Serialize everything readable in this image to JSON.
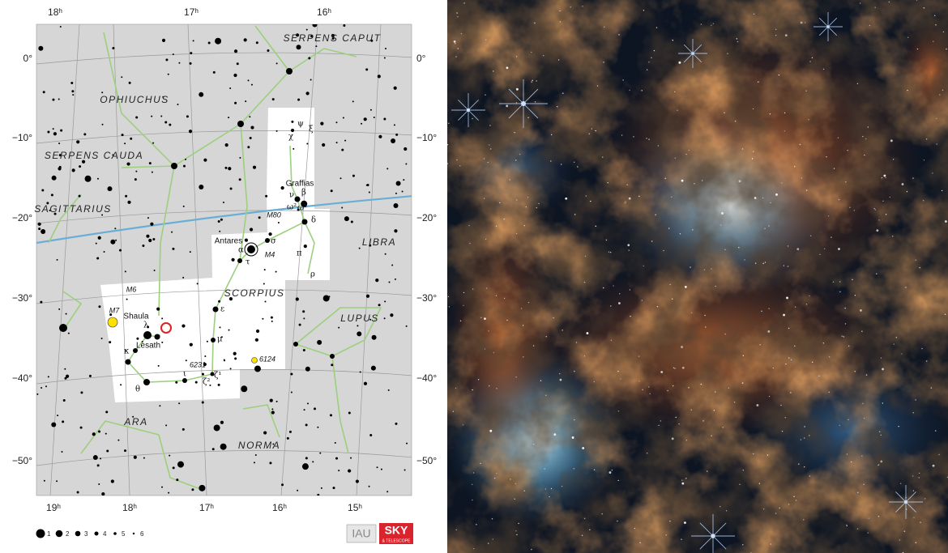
{
  "ra_labels_top": [
    "18ʰ",
    "17ʰ",
    "16ʰ"
  ],
  "ra_labels_bottom": [
    "19ʰ",
    "18ʰ",
    "17ʰ",
    "16ʰ",
    "15ʰ"
  ],
  "dec_labels": [
    "0°",
    "−10°",
    "−20°",
    "−30°",
    "−40°",
    "−50°"
  ],
  "constellations": [
    "SERPENS CAPUT",
    "OPHIUCHUS",
    "SERPENS CAUDA",
    "SAGITTARIUS",
    "LIBRA",
    "SCORPIUS",
    "LUPUS",
    "ARA",
    "NORMA"
  ],
  "star_names": [
    "Graffias",
    "Antares",
    "Shaula",
    "Lesath"
  ],
  "deep_sky": [
    "M80",
    "M4",
    "M6",
    "M7",
    "6231",
    "6124"
  ],
  "greek_letters": [
    "ψ",
    "ξ",
    "χ",
    "ν",
    "β",
    "ω¹",
    "ω²",
    "δ",
    "σ",
    "α",
    "τ",
    "π",
    "ρ",
    "ε",
    "μ",
    "λ",
    "υ",
    "κ",
    "θ",
    "ι",
    "ζ²",
    "ζ¹"
  ],
  "legend": [
    "1",
    "2",
    "3",
    "4",
    "5",
    "6"
  ],
  "logos": [
    "IAU",
    "SKY",
    "& TELESCOPE"
  ]
}
